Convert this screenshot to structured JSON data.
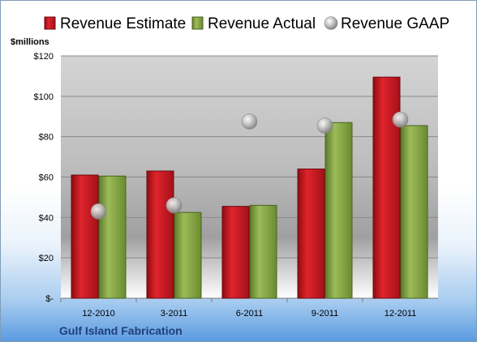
{
  "chart_data": {
    "type": "bar",
    "unit_label": "$millions",
    "company": "Gulf Island Fabrication",
    "categories": [
      "12-2010",
      "3-2011",
      "6-2011",
      "9-2011",
      "12-2011"
    ],
    "series": [
      {
        "name": "Revenue Estimate",
        "kind": "bar",
        "color": "#c0141c",
        "values": [
          61,
          63,
          45.5,
          64,
          109.5
        ]
      },
      {
        "name": "Revenue Actual",
        "kind": "bar",
        "color": "#7a9a3a",
        "values": [
          60.5,
          42.5,
          46,
          87,
          85.5
        ]
      },
      {
        "name": "Revenue GAAP",
        "kind": "marker",
        "color": "#9a9a9a",
        "values": [
          43,
          46,
          87.5,
          85.5,
          88.5
        ]
      }
    ],
    "ylim": [
      0,
      120
    ],
    "yticks": [
      0,
      20,
      40,
      60,
      80,
      100,
      120
    ],
    "ytick_labels": [
      "$-",
      "$20",
      "$40",
      "$60",
      "$80",
      "$100",
      "$120"
    ],
    "grid": true,
    "legend_position": "top"
  }
}
